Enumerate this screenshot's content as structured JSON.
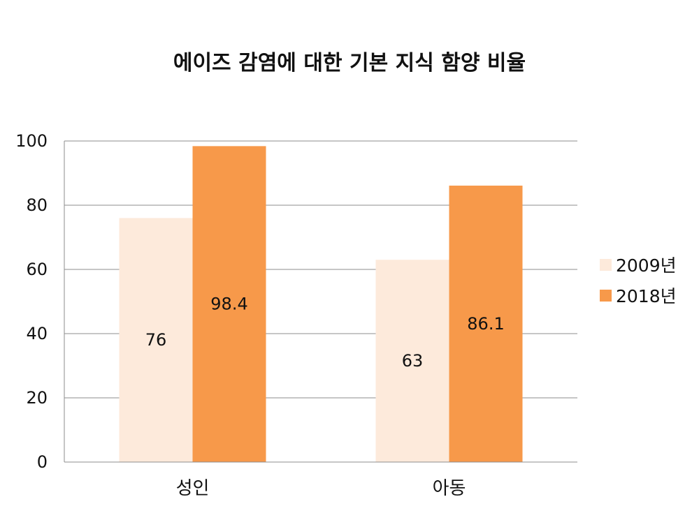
{
  "chart_data": {
    "type": "bar",
    "title": "에이즈 감염에 대한 기본 지식 함양 비율",
    "xlabel": "",
    "ylabel": "",
    "categories": [
      "성인",
      "아동"
    ],
    "series": [
      {
        "name": "2009년",
        "values": [
          76,
          63
        ],
        "color": "#fdeadb"
      },
      {
        "name": "2018년",
        "values": [
          98.4,
          86.1
        ],
        "color": "#f7994a"
      }
    ],
    "ylim": [
      0,
      100
    ],
    "yticks": [
      0,
      20,
      40,
      60,
      80,
      100
    ],
    "grid": true,
    "legend_position": "right"
  }
}
